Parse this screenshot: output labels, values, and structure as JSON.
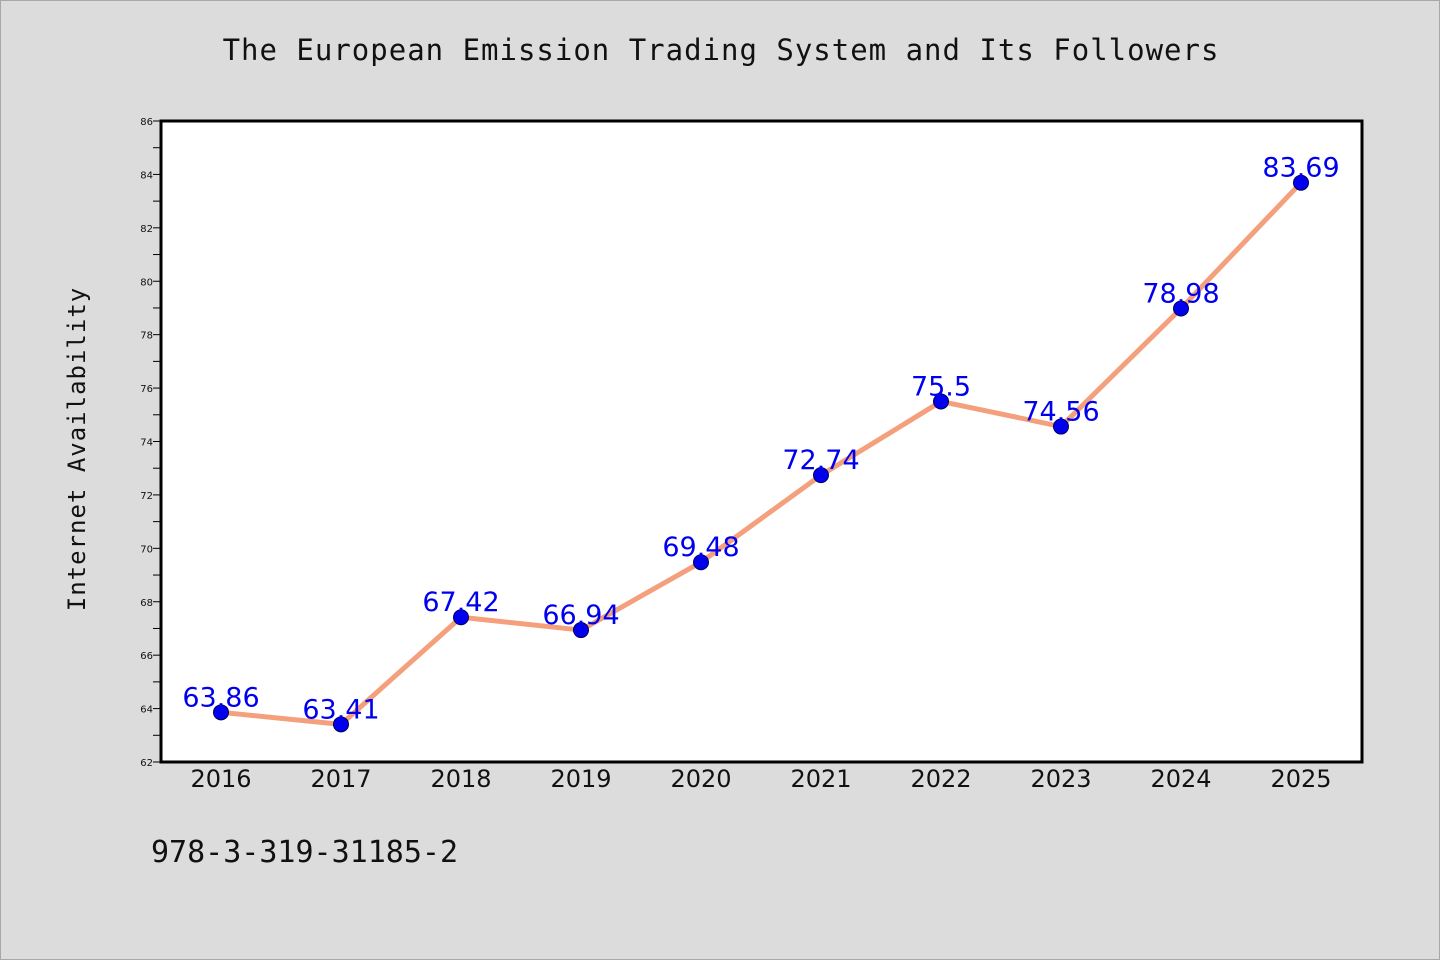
{
  "chart_data": {
    "type": "line",
    "title": "The European Emission Trading System and Its Followers",
    "xlabel": "",
    "ylabel": "Internet Availability",
    "categories": [
      "2016",
      "2017",
      "2018",
      "2019",
      "2020",
      "2021",
      "2022",
      "2023",
      "2024",
      "2025"
    ],
    "series": [
      {
        "values": [
          63.86,
          63.41,
          67.42,
          66.94,
          69.48,
          72.74,
          75.5,
          74.56,
          78.98,
          83.69
        ],
        "line_color": "#f4a07c",
        "marker_color": "#0000ee"
      }
    ],
    "ylim": [
      62,
      86
    ],
    "yticks": [
      "62",
      "64",
      "66",
      "68",
      "70",
      "72",
      "74",
      "76",
      "78",
      "80",
      "82",
      "84",
      "86"
    ],
    "data_labels": [
      "63.86",
      "63.41",
      "67.42",
      "66.94",
      "69.48",
      "72.74",
      "75.5",
      "74.56",
      "78.98",
      "83.69"
    ],
    "grid": false,
    "legend": "none",
    "annotation": "978-3-319-31185-2"
  }
}
